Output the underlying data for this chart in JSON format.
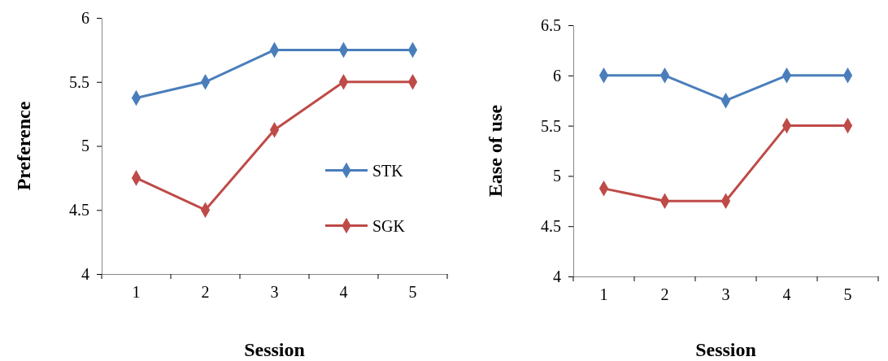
{
  "chart_data": [
    {
      "type": "line",
      "xlabel": "Session",
      "ylabel": "Preference",
      "categories": [
        "1",
        "2",
        "3",
        "4",
        "5"
      ],
      "ylim": [
        4,
        6
      ],
      "yticks": [
        4,
        4.5,
        5,
        5.5,
        6
      ],
      "marker": "diamond",
      "legend": "right",
      "grid": false,
      "series": [
        {
          "name": "STK",
          "color": "#4a7ebb",
          "values": [
            5.375,
            5.5,
            5.75,
            5.75,
            5.75
          ]
        },
        {
          "name": "SGK",
          "color": "#be4b48",
          "values": [
            4.75,
            4.5,
            5.125,
            5.5,
            5.5
          ]
        }
      ]
    },
    {
      "type": "line",
      "xlabel": "Session",
      "ylabel": "Ease of use",
      "categories": [
        "1",
        "2",
        "3",
        "4",
        "5"
      ],
      "ylim": [
        4,
        6.5
      ],
      "yticks": [
        4,
        4.5,
        5,
        5.5,
        6,
        6.5
      ],
      "marker": "diamond",
      "grid": false,
      "series": [
        {
          "color": "#4a7ebb",
          "values": [
            6,
            6,
            5.75,
            6,
            6
          ]
        },
        {
          "color": "#be4b48",
          "values": [
            4.875,
            4.75,
            4.75,
            5.5,
            5.5
          ]
        }
      ]
    }
  ]
}
